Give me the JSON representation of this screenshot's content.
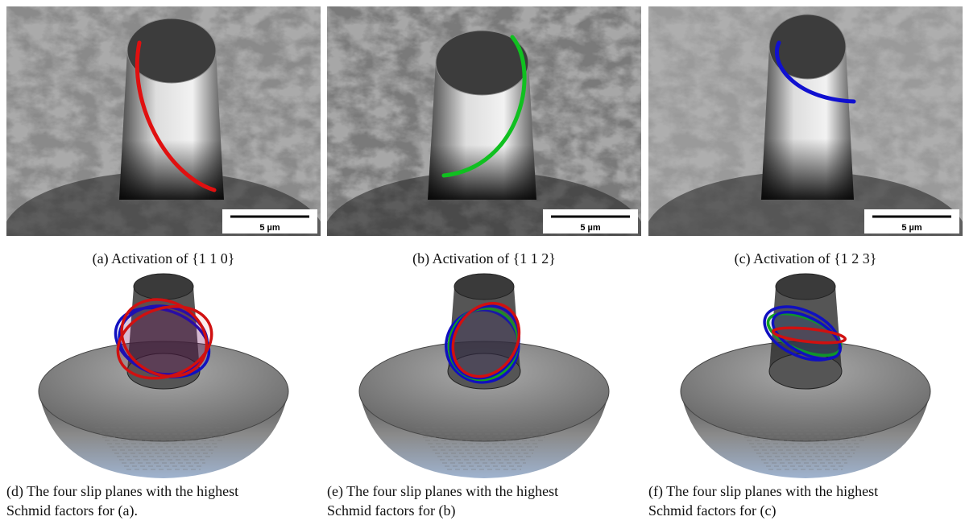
{
  "figure": {
    "top_panels": [
      {
        "caption": "(a) Activation of {1 1 0}",
        "scale_bar": "5 µm"
      },
      {
        "caption": "(b) Activation of {1 1 2}",
        "scale_bar": "5 µm"
      },
      {
        "caption": "(c) Activation of {1 2 3}",
        "scale_bar": "5 µm"
      }
    ],
    "bottom_panels": [
      {
        "caption_lines": [
          "(d) The four slip planes with the highest",
          "Schmid factors for (a)."
        ]
      },
      {
        "caption_lines": [
          "(e) The four slip planes with the highest",
          "Schmid factors for (b)"
        ]
      },
      {
        "caption_lines": [
          "(f) The four slip planes with the highest",
          "Schmid factors for (c)"
        ]
      }
    ]
  }
}
